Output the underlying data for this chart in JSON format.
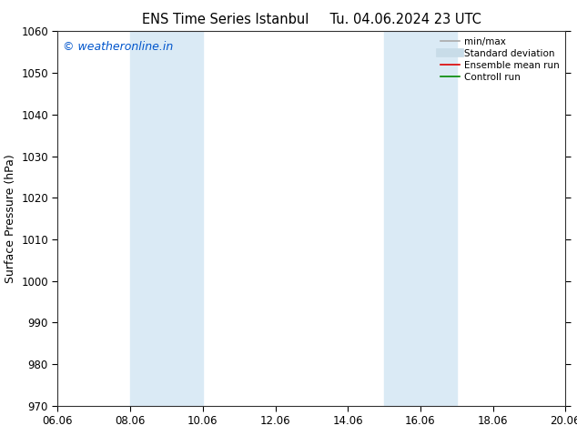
{
  "title_left": "ENS Time Series Istanbul",
  "title_right": "Tu. 04.06.2024 23 UTC",
  "ylabel": "Surface Pressure (hPa)",
  "ylim": [
    970,
    1060
  ],
  "yticks": [
    970,
    980,
    990,
    1000,
    1010,
    1020,
    1030,
    1040,
    1050,
    1060
  ],
  "xlim": [
    0,
    14
  ],
  "xtick_labels": [
    "06.06",
    "08.06",
    "10.06",
    "12.06",
    "14.06",
    "16.06",
    "18.06",
    "20.06"
  ],
  "xtick_positions": [
    0,
    2,
    4,
    6,
    8,
    10,
    12,
    14
  ],
  "shaded_bands": [
    {
      "x_start": 2,
      "x_end": 4,
      "color": "#daeaf5"
    },
    {
      "x_start": 9,
      "x_end": 11,
      "color": "#daeaf5"
    }
  ],
  "watermark_text": "© weatheronline.in",
  "watermark_color": "#0055cc",
  "background_color": "#ffffff",
  "plot_bg_color": "#ffffff",
  "legend_entries": [
    {
      "label": "min/max",
      "color": "#aaaaaa",
      "lw": 1.2,
      "style": "-"
    },
    {
      "label": "Standard deviation",
      "color": "#c8dce8",
      "lw": 7,
      "style": "-"
    },
    {
      "label": "Ensemble mean run",
      "color": "#dd0000",
      "lw": 1.2,
      "style": "-"
    },
    {
      "label": "Controll run",
      "color": "#008800",
      "lw": 1.2,
      "style": "-"
    }
  ],
  "title_fontsize": 10.5,
  "tick_fontsize": 8.5,
  "legend_fontsize": 7.5,
  "ylabel_fontsize": 9,
  "watermark_fontsize": 9
}
